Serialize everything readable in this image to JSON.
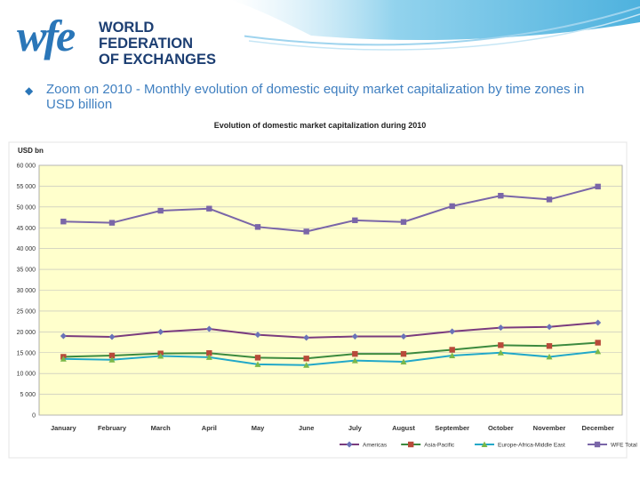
{
  "header": {
    "logo_mark": "wfe",
    "logo_line1": "WORLD FEDERATION",
    "logo_line2": "OF EXCHANGES",
    "bullet_icon": "diamond-bullet-icon",
    "heading": "Zoom on 2010 - Monthly evolution of domestic equity market capitalization by time zones in USD billion"
  },
  "colors": {
    "plot_bg": "#ffffcc",
    "americas": "#7a3b7e",
    "asia_pacific": "#3c8a3f",
    "europe": "#22a8c8",
    "wfe_total": "#7a66a8",
    "heading": "#3f7fc0"
  },
  "chart_data": {
    "type": "line",
    "title": "Evolution of domestic market capitalization during 2010",
    "ylabel": "USD bn",
    "xlabel": "",
    "ylim": [
      0,
      60000
    ],
    "yticks": [
      0,
      5000,
      10000,
      15000,
      20000,
      25000,
      30000,
      35000,
      40000,
      45000,
      50000,
      55000,
      60000
    ],
    "ytick_labels": [
      "0",
      "5 000",
      "10 000",
      "15 000",
      "20 000",
      "25 000",
      "30 000",
      "35 000",
      "40 000",
      "45 000",
      "50 000",
      "55 000",
      "60 000"
    ],
    "categories": [
      "January",
      "February",
      "March",
      "April",
      "May",
      "June",
      "July",
      "August",
      "September",
      "October",
      "November",
      "December"
    ],
    "grid": true,
    "legend_position": "bottom-right",
    "series": [
      {
        "key": "americas",
        "name": "Americas",
        "marker": "diamond",
        "values": [
          19000,
          18800,
          20000,
          20700,
          19300,
          18600,
          18900,
          18900,
          20100,
          21000,
          21200,
          22200
        ]
      },
      {
        "key": "asia_pacific",
        "name": "Asia-Pacific",
        "marker": "square",
        "values": [
          14000,
          14300,
          14800,
          14900,
          13800,
          13600,
          14700,
          14700,
          15700,
          16800,
          16600,
          17400
        ]
      },
      {
        "key": "europe",
        "name": "Europe-Africa-Middle East",
        "marker": "triangle",
        "values": [
          13500,
          13300,
          14200,
          13900,
          12200,
          12000,
          13100,
          12800,
          14300,
          15000,
          14000,
          15300
        ]
      },
      {
        "key": "wfe_total",
        "name": "WFE Total",
        "marker": "square",
        "values": [
          46500,
          46200,
          49100,
          49600,
          45200,
          44100,
          46800,
          46400,
          50200,
          52700,
          51800,
          54900
        ]
      }
    ]
  }
}
